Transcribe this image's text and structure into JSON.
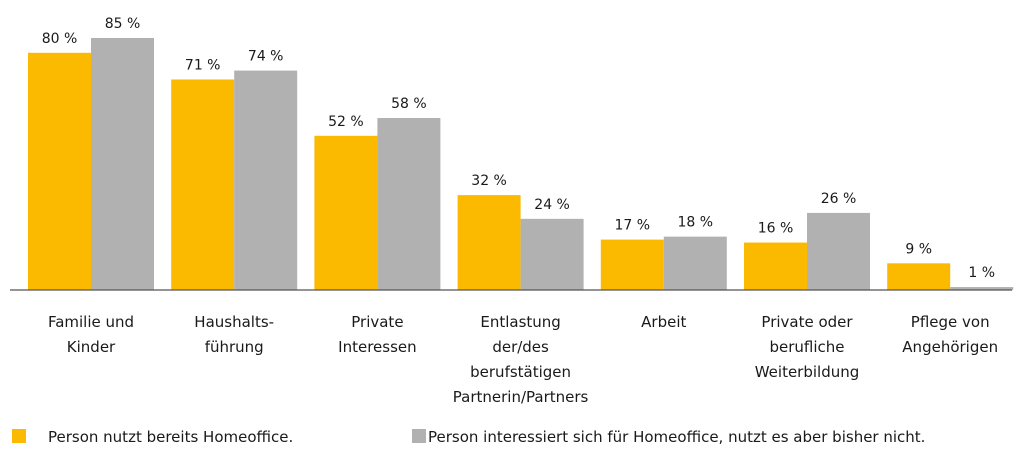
{
  "chart_data": {
    "type": "bar",
    "categories": [
      [
        "Familie und",
        "Kinder"
      ],
      [
        "Haushalts-",
        "führung"
      ],
      [
        "Private",
        "Interessen"
      ],
      [
        "Entlastung",
        "der/des",
        "berufstätigen",
        "Partnerin/Partners"
      ],
      [
        "Arbeit"
      ],
      [
        "Private oder",
        "berufliche",
        "Weiterbildung"
      ],
      [
        "Pflege von",
        "Angehörigen"
      ]
    ],
    "series": [
      {
        "name": "Person nutzt bereits Homeoffice.",
        "color": "#fbb900",
        "values": [
          80,
          71,
          52,
          32,
          17,
          16,
          9
        ],
        "value_labels": [
          "80 %",
          "71 %",
          "52 %",
          "32 %",
          "17 %",
          "16 %",
          "9 %"
        ]
      },
      {
        "name": "Person interessiert sich für Homeoffice, nutzt es aber bisher nicht.",
        "color": "#b1b1b1",
        "values": [
          85,
          74,
          58,
          24,
          18,
          26,
          1
        ],
        "value_labels": [
          "85 %",
          "74 %",
          "58 %",
          "24 %",
          "18 %",
          "26 %",
          "1 %"
        ]
      }
    ]
  }
}
